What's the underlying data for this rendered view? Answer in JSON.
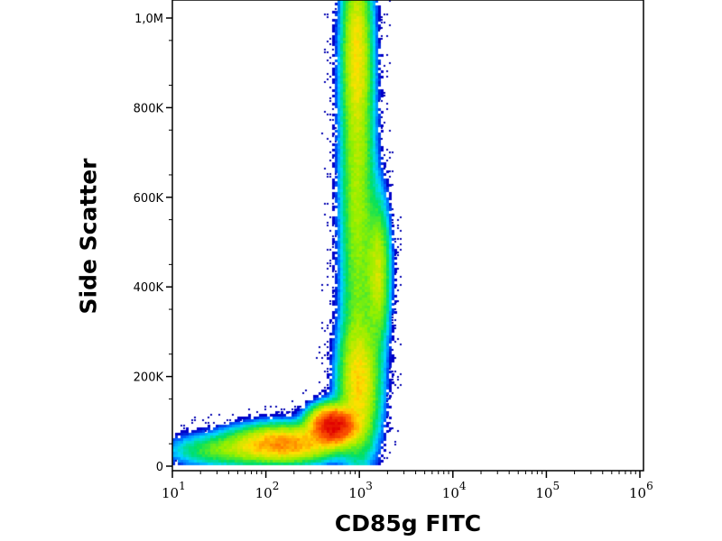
{
  "chart_data": {
    "type": "heatmap",
    "subtype": "flow-cytometry density dot plot",
    "xlabel": "CD85g FITC",
    "ylabel": "Side Scatter",
    "xscale": "log",
    "xlim_log10": [
      1,
      6
    ],
    "ylim": [
      0,
      1050000
    ],
    "xticks": [
      {
        "base": "10",
        "exp": "1"
      },
      {
        "base": "10",
        "exp": "2"
      },
      {
        "base": "10",
        "exp": "3"
      },
      {
        "base": "10",
        "exp": "4"
      },
      {
        "base": "10",
        "exp": "5"
      },
      {
        "base": "10",
        "exp": "6"
      }
    ],
    "yticks": [
      {
        "value": 0,
        "label": "0"
      },
      {
        "value": 200000,
        "label": "200K"
      },
      {
        "value": 400000,
        "label": "400K"
      },
      {
        "value": 600000,
        "label": "600K"
      },
      {
        "value": 800000,
        "label": "800K"
      },
      {
        "value": 1000000,
        "label": "1,0M"
      }
    ],
    "populations": [
      {
        "name": "main",
        "log10x": 2.72,
        "y": 90000,
        "sx": 0.13,
        "sy": 22000,
        "w": 1.0
      },
      {
        "name": "low-tail",
        "log10x": 2.2,
        "y": 50000,
        "sx": 0.3,
        "sy": 22000,
        "w": 0.35
      },
      {
        "name": "far-low-tail",
        "log10x": 1.6,
        "y": 35000,
        "sx": 0.35,
        "sy": 20000,
        "w": 0.08
      },
      {
        "name": "column-base",
        "log10x": 3.0,
        "y": 180000,
        "sx": 0.12,
        "sy": 80000,
        "w": 0.2
      },
      {
        "name": "column",
        "log10x": 2.98,
        "y": 650000,
        "sx": 0.1,
        "sy": 300000,
        "w": 0.12
      },
      {
        "name": "column-top",
        "log10x": 2.97,
        "y": 930000,
        "sx": 0.08,
        "sy": 100000,
        "w": 0.14
      },
      {
        "name": "secondary",
        "log10x": 3.2,
        "y": 430000,
        "sx": 0.07,
        "sy": 90000,
        "w": 0.15
      }
    ],
    "colormap": [
      "#0000c8",
      "#0060ff",
      "#00d8ff",
      "#00e060",
      "#90f000",
      "#ffe000",
      "#ff6000",
      "#e00000"
    ],
    "grid": false
  }
}
